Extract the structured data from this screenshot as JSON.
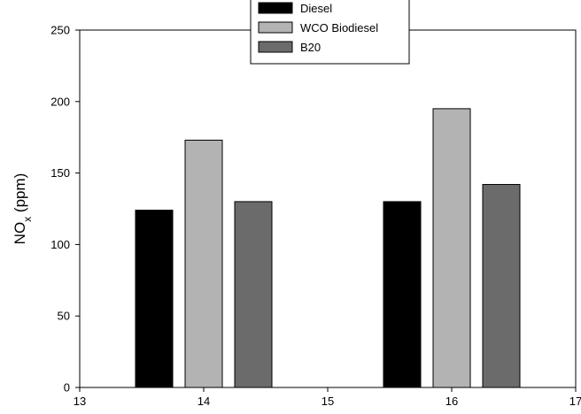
{
  "chart_data": {
    "type": "bar",
    "title": "",
    "xlabel": "",
    "ylabel": "NO",
    "ylabel_subscript": "x",
    "ylabel_unit": " (ppm)",
    "xlim": [
      13,
      17
    ],
    "ylim": [
      0,
      250
    ],
    "xticks": [
      13,
      14,
      15,
      16,
      17
    ],
    "yticks": [
      0,
      50,
      100,
      150,
      200,
      250
    ],
    "bar_width": 0.3,
    "grid": false,
    "legend_position": "top-center",
    "series": [
      {
        "name": "Diesel",
        "color": "#000000",
        "x": [
          13.6,
          15.6
        ],
        "values": [
          124,
          130
        ]
      },
      {
        "name": "WCO Biodiesel",
        "color": "#b3b3b3",
        "x": [
          14.0,
          16.0
        ],
        "values": [
          173,
          195
        ]
      },
      {
        "name": "B20",
        "color": "#6b6b6b",
        "x": [
          14.4,
          16.4
        ],
        "values": [
          130,
          142
        ]
      }
    ]
  }
}
